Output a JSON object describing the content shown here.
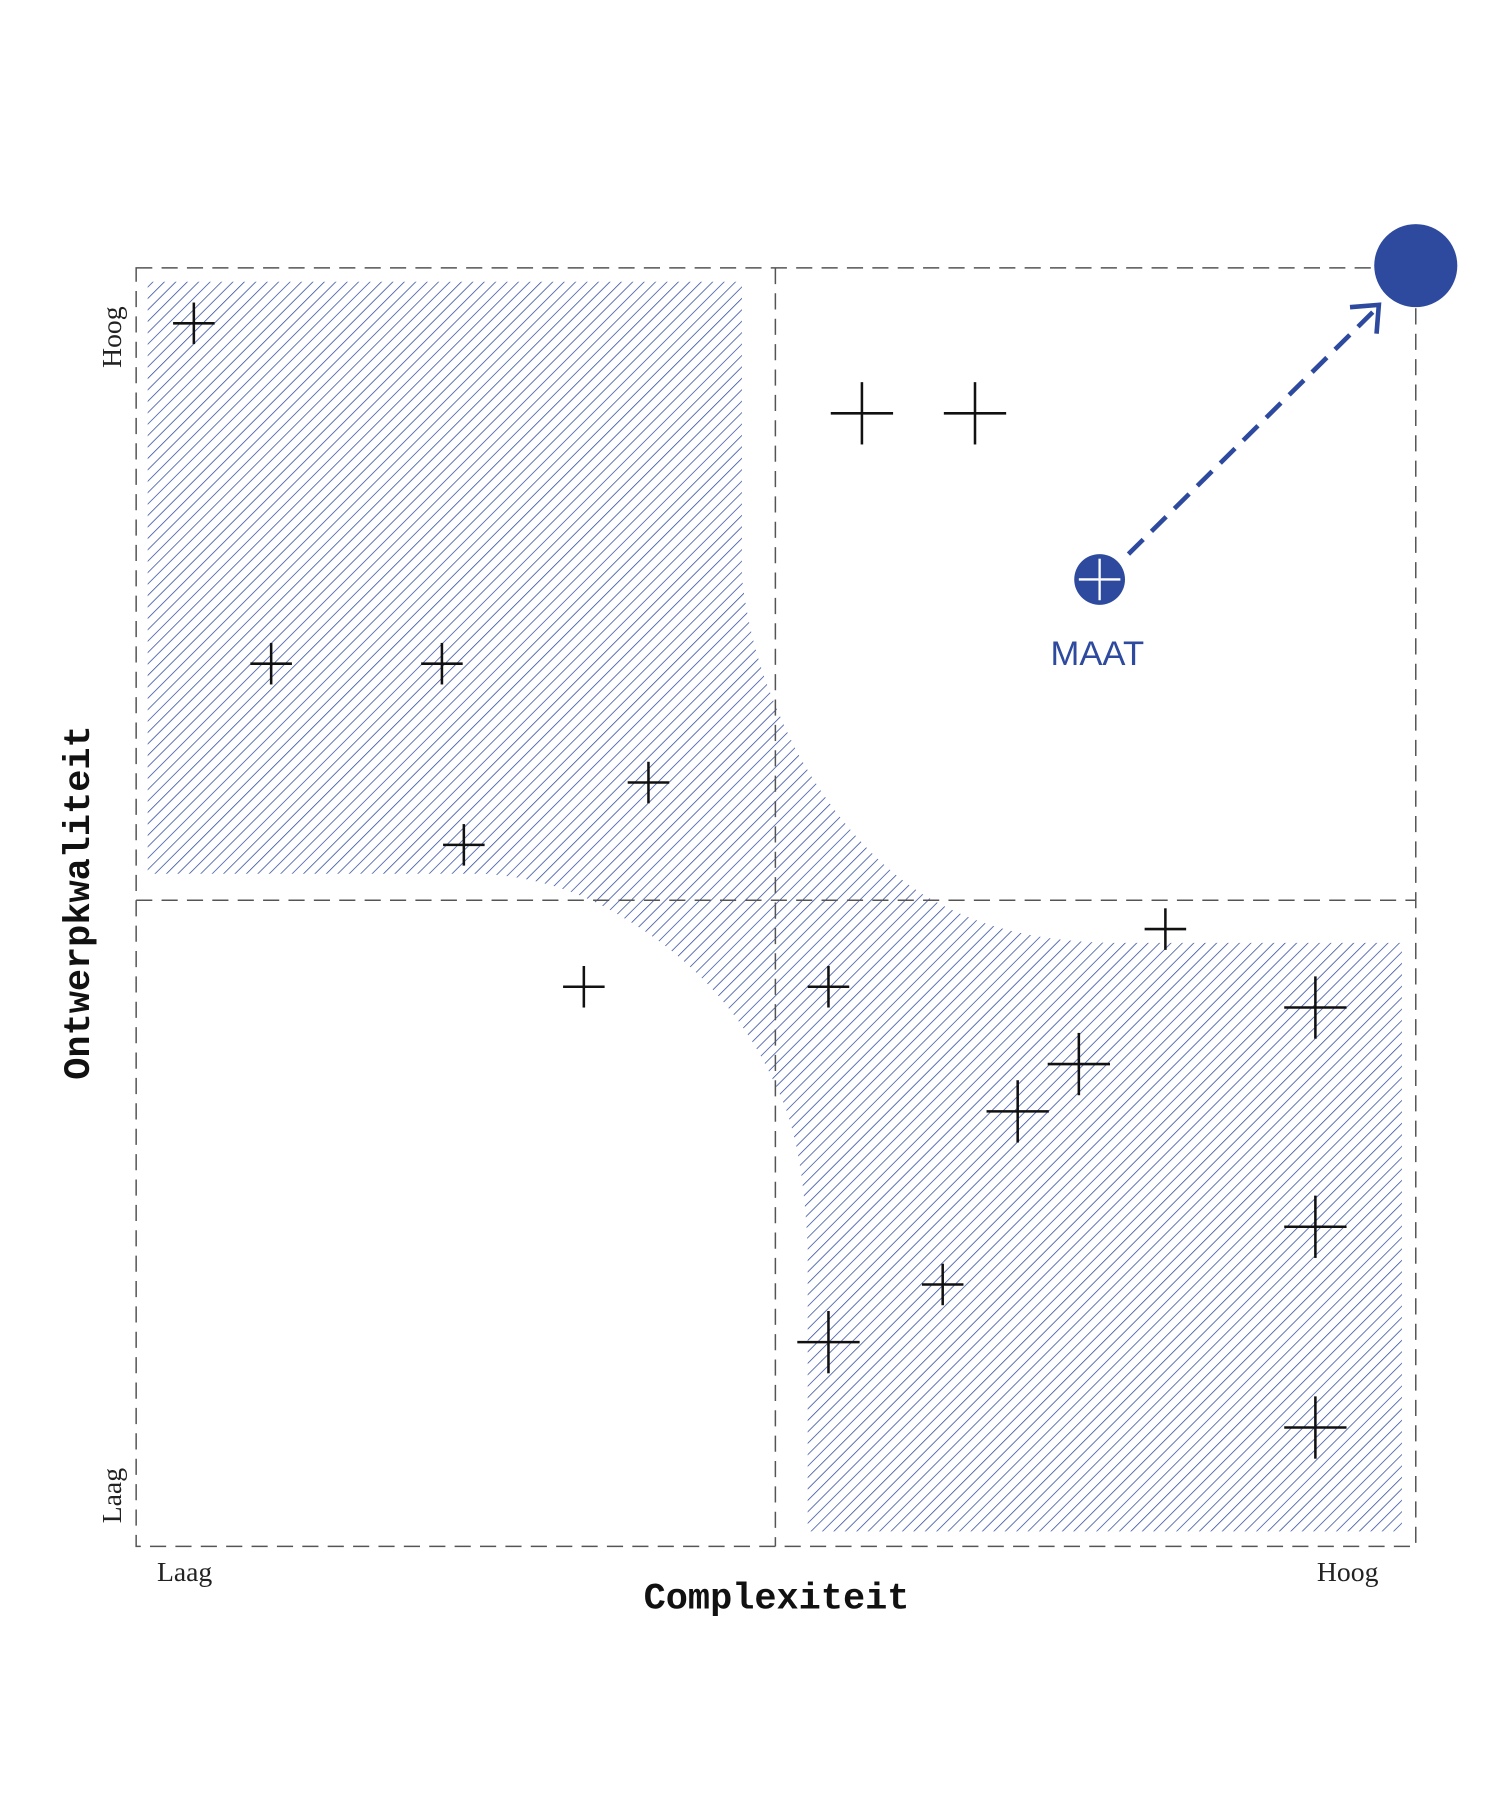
{
  "axes": {
    "x_label": "Complexiteit",
    "y_label": "Ontwerpkwaliteit",
    "x_low": "Laag",
    "x_high": "Hoog",
    "y_low": "Laag",
    "y_high": "Hoog"
  },
  "marker": {
    "label": "MAAT"
  }
}
